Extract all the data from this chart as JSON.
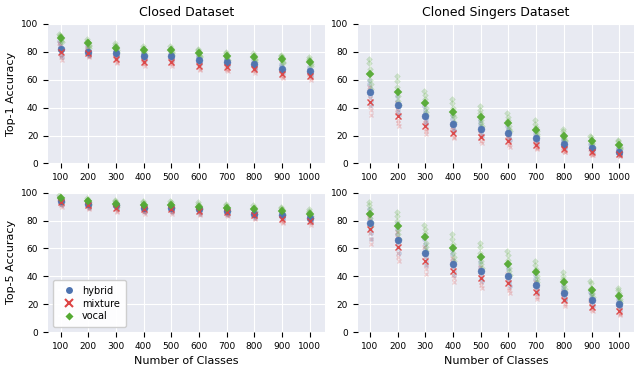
{
  "x_classes": [
    100,
    200,
    300,
    400,
    500,
    600,
    700,
    800,
    900,
    1000
  ],
  "xlabel": "Number of Classes",
  "closed_top1": {
    "hybrid": [
      [
        88,
        86,
        84,
        82,
        80,
        78,
        76
      ],
      [
        85,
        83,
        81,
        80,
        79,
        78,
        77
      ],
      [
        83,
        81,
        80,
        79,
        78,
        77,
        76
      ],
      [
        80,
        79,
        78,
        77,
        76,
        75,
        74
      ],
      [
        80,
        79,
        78,
        77,
        76,
        75,
        74
      ],
      [
        77,
        76,
        75,
        74,
        73,
        72,
        71
      ],
      [
        76,
        75,
        74,
        73,
        72,
        71,
        70
      ],
      [
        74,
        73,
        72,
        71,
        70,
        69,
        68
      ],
      [
        71,
        70,
        69,
        68,
        67,
        66,
        65
      ],
      [
        69,
        68,
        67,
        66,
        65,
        64,
        63
      ]
    ],
    "mixture": [
      [
        86,
        84,
        82,
        80,
        78,
        76,
        74
      ],
      [
        83,
        81,
        80,
        79,
        78,
        77,
        76
      ],
      [
        79,
        77,
        76,
        75,
        74,
        73,
        72
      ],
      [
        77,
        75,
        74,
        73,
        72,
        71,
        70
      ],
      [
        77,
        75,
        74,
        73,
        72,
        71,
        70
      ],
      [
        73,
        72,
        71,
        70,
        69,
        68,
        67
      ],
      [
        72,
        71,
        70,
        69,
        68,
        67,
        66
      ],
      [
        71,
        70,
        69,
        68,
        67,
        66,
        65
      ],
      [
        67,
        66,
        65,
        64,
        63,
        62,
        61
      ],
      [
        66,
        65,
        64,
        63,
        62,
        61,
        60
      ]
    ],
    "vocal": [
      [
        93,
        92,
        91,
        90,
        89,
        88,
        87
      ],
      [
        89,
        88,
        87,
        86,
        85,
        84,
        83
      ],
      [
        86,
        85,
        84,
        83,
        82,
        81,
        80
      ],
      [
        84,
        83,
        82,
        81,
        80,
        79,
        78
      ],
      [
        84,
        83,
        82,
        81,
        80,
        79,
        78
      ],
      [
        82,
        81,
        80,
        79,
        78,
        77,
        76
      ],
      [
        80,
        79,
        78,
        77,
        76,
        75,
        74
      ],
      [
        79,
        78,
        77,
        76,
        75,
        74,
        73
      ],
      [
        78,
        77,
        76,
        75,
        74,
        73,
        72
      ],
      [
        76,
        75,
        74,
        73,
        72,
        71,
        70
      ]
    ]
  },
  "closed_top5": {
    "hybrid": [
      [
        97,
        96,
        95,
        94,
        93,
        92,
        91
      ],
      [
        95,
        94,
        93,
        92,
        91,
        90,
        89
      ],
      [
        93,
        92,
        92,
        91,
        90,
        89,
        88
      ],
      [
        92,
        91,
        90,
        89,
        88,
        87,
        86
      ],
      [
        91,
        90,
        90,
        89,
        88,
        87,
        86
      ],
      [
        90,
        89,
        89,
        88,
        87,
        86,
        85
      ],
      [
        90,
        89,
        88,
        87,
        86,
        85,
        84
      ],
      [
        88,
        87,
        86,
        85,
        84,
        83,
        82
      ],
      [
        87,
        86,
        85,
        84,
        83,
        82,
        81
      ],
      [
        85,
        84,
        83,
        82,
        81,
        80,
        79
      ]
    ],
    "mixture": [
      [
        96,
        95,
        94,
        93,
        92,
        91,
        90
      ],
      [
        94,
        93,
        92,
        91,
        90,
        89,
        88
      ],
      [
        92,
        91,
        90,
        89,
        88,
        87,
        86
      ],
      [
        91,
        90,
        89,
        88,
        87,
        86,
        85
      ],
      [
        91,
        90,
        89,
        88,
        87,
        86,
        85
      ],
      [
        90,
        89,
        88,
        87,
        86,
        85,
        84
      ],
      [
        89,
        88,
        87,
        86,
        85,
        84,
        83
      ],
      [
        87,
        86,
        85,
        84,
        83,
        82,
        81
      ],
      [
        84,
        83,
        82,
        81,
        80,
        79,
        78
      ],
      [
        83,
        82,
        81,
        80,
        79,
        78,
        77
      ]
    ],
    "vocal": [
      [
        98,
        97,
        97,
        96,
        95,
        94,
        93
      ],
      [
        96,
        95,
        95,
        94,
        93,
        92,
        91
      ],
      [
        95,
        94,
        93,
        92,
        92,
        91,
        90
      ],
      [
        94,
        93,
        92,
        91,
        91,
        90,
        89
      ],
      [
        94,
        93,
        92,
        91,
        91,
        90,
        89
      ],
      [
        93,
        92,
        91,
        90,
        90,
        89,
        88
      ],
      [
        92,
        91,
        90,
        89,
        89,
        88,
        87
      ],
      [
        91,
        90,
        89,
        88,
        87,
        86,
        85
      ],
      [
        90,
        89,
        88,
        87,
        86,
        85,
        84
      ],
      [
        88,
        87,
        86,
        85,
        84,
        83,
        82
      ]
    ]
  },
  "cloned_top1": {
    "hybrid": [
      [
        60,
        57,
        54,
        51,
        48,
        45,
        42
      ],
      [
        52,
        48,
        45,
        42,
        39,
        37,
        35
      ],
      [
        41,
        38,
        36,
        34,
        32,
        30,
        28
      ],
      [
        35,
        32,
        30,
        28,
        26,
        24,
        23
      ],
      [
        31,
        29,
        27,
        25,
        23,
        22,
        20
      ],
      [
        27,
        25,
        23,
        22,
        20,
        18,
        17
      ],
      [
        23,
        21,
        20,
        18,
        17,
        16,
        14
      ],
      [
        18,
        17,
        16,
        14,
        13,
        12,
        11
      ],
      [
        14,
        13,
        12,
        11,
        10,
        9,
        8
      ],
      [
        11,
        10,
        9,
        8,
        7,
        7,
        6
      ]
    ],
    "mixture": [
      [
        55,
        51,
        47,
        44,
        41,
        38,
        35
      ],
      [
        43,
        39,
        36,
        34,
        31,
        29,
        27
      ],
      [
        34,
        31,
        29,
        27,
        25,
        23,
        21
      ],
      [
        28,
        26,
        24,
        22,
        21,
        19,
        18
      ],
      [
        24,
        22,
        20,
        19,
        18,
        16,
        15
      ],
      [
        20,
        18,
        17,
        16,
        15,
        13,
        12
      ],
      [
        17,
        15,
        14,
        13,
        12,
        11,
        10
      ],
      [
        14,
        12,
        11,
        10,
        9,
        8,
        8
      ],
      [
        10,
        9,
        8,
        8,
        7,
        6,
        6
      ],
      [
        9,
        8,
        7,
        7,
        6,
        5,
        5
      ]
    ],
    "vocal": [
      [
        75,
        72,
        68,
        64,
        60,
        57,
        53
      ],
      [
        63,
        59,
        55,
        51,
        48,
        45,
        42
      ],
      [
        52,
        49,
        46,
        43,
        40,
        37,
        35
      ],
      [
        46,
        43,
        40,
        37,
        35,
        33,
        30
      ],
      [
        41,
        38,
        36,
        33,
        31,
        29,
        27
      ],
      [
        36,
        33,
        31,
        29,
        27,
        25,
        23
      ],
      [
        31,
        28,
        26,
        24,
        23,
        21,
        20
      ],
      [
        25,
        23,
        21,
        20,
        18,
        17,
        16
      ],
      [
        20,
        19,
        17,
        16,
        15,
        14,
        12
      ],
      [
        17,
        16,
        14,
        13,
        12,
        11,
        10
      ]
    ]
  },
  "cloned_top5": {
    "hybrid": [
      [
        88,
        85,
        82,
        78,
        74,
        71,
        67
      ],
      [
        78,
        74,
        70,
        66,
        63,
        60,
        57
      ],
      [
        67,
        63,
        60,
        57,
        54,
        51,
        48
      ],
      [
        59,
        56,
        52,
        49,
        47,
        44,
        41
      ],
      [
        53,
        50,
        47,
        44,
        42,
        39,
        37
      ],
      [
        48,
        45,
        42,
        40,
        37,
        35,
        33
      ],
      [
        41,
        38,
        36,
        34,
        32,
        30,
        28
      ],
      [
        34,
        32,
        30,
        28,
        26,
        24,
        23
      ],
      [
        29,
        27,
        25,
        23,
        22,
        21,
        19
      ],
      [
        25,
        23,
        22,
        20,
        19,
        18,
        16
      ]
    ],
    "mixture": [
      [
        85,
        82,
        78,
        74,
        71,
        67,
        63
      ],
      [
        72,
        68,
        64,
        61,
        57,
        54,
        51
      ],
      [
        61,
        57,
        54,
        51,
        48,
        45,
        42
      ],
      [
        53,
        50,
        47,
        44,
        41,
        39,
        36
      ],
      [
        47,
        44,
        42,
        39,
        36,
        34,
        32
      ],
      [
        42,
        39,
        37,
        35,
        32,
        30,
        28
      ],
      [
        36,
        34,
        31,
        29,
        27,
        25,
        24
      ],
      [
        29,
        27,
        25,
        23,
        22,
        20,
        19
      ],
      [
        23,
        22,
        20,
        18,
        17,
        16,
        15
      ],
      [
        20,
        18,
        17,
        15,
        14,
        13,
        12
      ]
    ],
    "vocal": [
      [
        93,
        91,
        88,
        85,
        82,
        79,
        76
      ],
      [
        86,
        83,
        80,
        76,
        73,
        70,
        67
      ],
      [
        77,
        74,
        71,
        68,
        64,
        61,
        58
      ],
      [
        70,
        67,
        63,
        60,
        57,
        54,
        51
      ],
      [
        64,
        61,
        57,
        54,
        51,
        49,
        46
      ],
      [
        58,
        55,
        52,
        49,
        46,
        44,
        41
      ],
      [
        51,
        48,
        45,
        43,
        40,
        38,
        36
      ],
      [
        43,
        40,
        38,
        36,
        33,
        31,
        29
      ],
      [
        37,
        35,
        32,
        30,
        28,
        27,
        25
      ],
      [
        32,
        30,
        28,
        26,
        24,
        22,
        21
      ]
    ]
  },
  "color_hybrid": "#4C72B0",
  "color_mixture": "#DD4444",
  "color_vocal": "#55AA33",
  "bg_color": "#E8EAF2",
  "grid_color": "#FFFFFF"
}
